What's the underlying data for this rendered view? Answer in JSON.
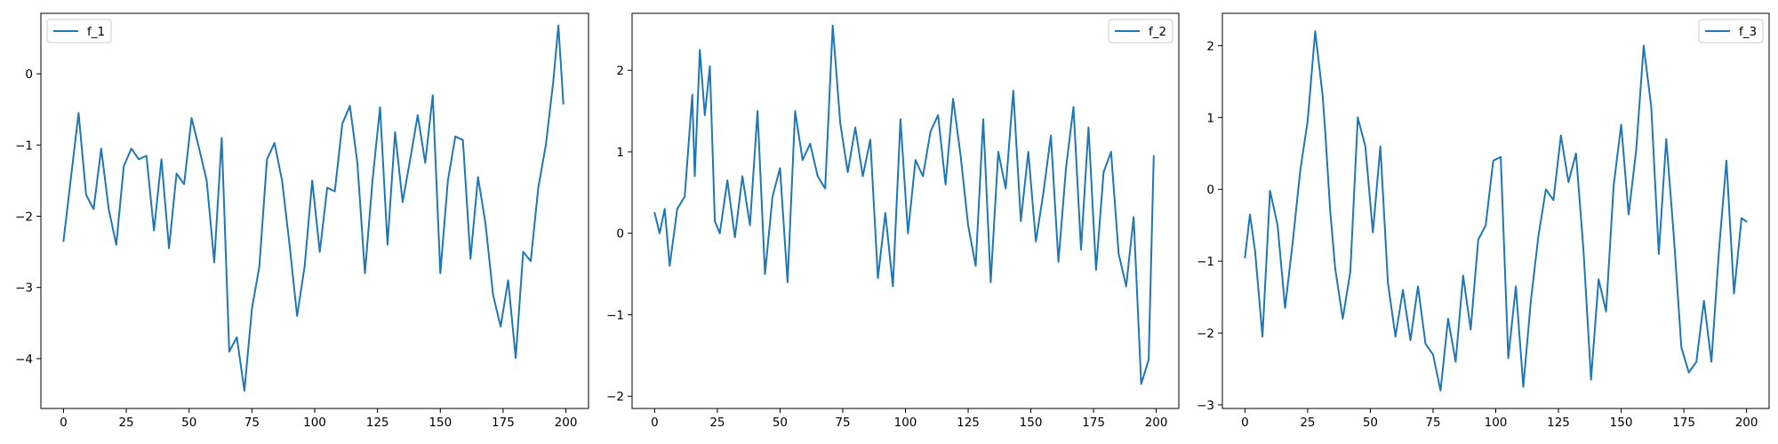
{
  "figure": {
    "line_color": "#1f77b4"
  },
  "chart_data": [
    {
      "type": "line",
      "title": "",
      "xlabel": "",
      "ylabel": "",
      "grid": false,
      "legend": "top-left",
      "xlim": [
        -9,
        209
      ],
      "ylim": [
        -4.7,
        0.85
      ],
      "xticks": [
        0,
        25,
        50,
        75,
        100,
        125,
        150,
        175,
        200
      ],
      "xtick_labels": [
        "0",
        "25",
        "50",
        "75",
        "100",
        "125",
        "150",
        "175",
        "200"
      ],
      "yticks": [
        0,
        -1,
        -2,
        -3,
        -4
      ],
      "ytick_labels": [
        "0",
        "−1",
        "−2",
        "−3",
        "−4"
      ],
      "series": [
        {
          "name": "f_1",
          "color": "#1f77b4",
          "x": [
            0,
            3,
            6,
            9,
            12,
            15,
            18,
            21,
            24,
            27,
            30,
            33,
            36,
            39,
            42,
            45,
            48,
            51,
            54,
            57,
            60,
            63,
            66,
            69,
            72,
            75,
            78,
            81,
            84,
            87,
            90,
            93,
            96,
            99,
            102,
            105,
            108,
            111,
            114,
            117,
            120,
            123,
            126,
            129,
            132,
            135,
            138,
            141,
            144,
            147,
            150,
            153,
            156,
            159,
            162,
            165,
            168,
            171,
            174,
            177,
            180,
            183,
            186,
            189,
            192,
            195,
            197,
            199
          ],
          "y": [
            -2.35,
            -1.45,
            -0.55,
            -1.7,
            -1.9,
            -1.05,
            -1.9,
            -2.4,
            -1.3,
            -1.05,
            -1.2,
            -1.15,
            -2.2,
            -1.2,
            -2.45,
            -1.4,
            -1.55,
            -0.62,
            -1.05,
            -1.5,
            -2.65,
            -0.9,
            -3.9,
            -3.7,
            -4.45,
            -3.3,
            -2.7,
            -1.2,
            -0.97,
            -1.5,
            -2.4,
            -3.4,
            -2.7,
            -1.5,
            -2.5,
            -1.6,
            -1.65,
            -0.7,
            -0.45,
            -1.25,
            -2.8,
            -1.5,
            -0.47,
            -2.4,
            -0.82,
            -1.8,
            -1.2,
            -0.58,
            -1.25,
            -0.3,
            -2.8,
            -1.5,
            -0.88,
            -0.93,
            -2.6,
            -1.45,
            -2.1,
            -3.1,
            -3.55,
            -2.9,
            -3.99,
            -2.5,
            -2.63,
            -1.6,
            -1.0,
            -0.1,
            0.68,
            -0.42
          ]
        }
      ]
    },
    {
      "type": "line",
      "title": "",
      "xlabel": "",
      "ylabel": "",
      "grid": false,
      "legend": "top-right",
      "xlim": [
        -9,
        209
      ],
      "ylim": [
        -2.15,
        2.7
      ],
      "xticks": [
        0,
        25,
        50,
        75,
        100,
        125,
        150,
        175,
        200
      ],
      "xtick_labels": [
        "0",
        "25",
        "50",
        "75",
        "100",
        "125",
        "150",
        "175",
        "200"
      ],
      "yticks": [
        2,
        1,
        0,
        -1,
        -2
      ],
      "ytick_labels": [
        "2",
        "1",
        "0",
        "−1",
        "−2"
      ],
      "series": [
        {
          "name": "f_2",
          "color": "#1f77b4",
          "x": [
            0,
            2,
            4,
            6,
            9,
            12,
            15,
            16,
            18,
            20,
            22,
            24,
            26,
            29,
            32,
            35,
            38,
            41,
            44,
            47,
            50,
            53,
            56,
            59,
            62,
            65,
            68,
            71,
            74,
            77,
            80,
            83,
            86,
            89,
            92,
            95,
            98,
            101,
            104,
            107,
            110,
            113,
            116,
            119,
            122,
            125,
            128,
            131,
            134,
            137,
            140,
            143,
            146,
            149,
            152,
            155,
            158,
            161,
            164,
            167,
            170,
            173,
            176,
            179,
            182,
            185,
            188,
            191,
            194,
            197,
            199
          ],
          "y": [
            0.25,
            0.0,
            0.3,
            -0.4,
            0.3,
            0.45,
            1.7,
            0.7,
            2.25,
            1.45,
            2.05,
            0.15,
            0.0,
            0.65,
            -0.05,
            0.7,
            0.1,
            1.5,
            -0.5,
            0.45,
            0.8,
            -0.6,
            1.5,
            0.9,
            1.1,
            0.7,
            0.55,
            2.55,
            1.35,
            0.75,
            1.3,
            0.7,
            1.15,
            -0.55,
            0.25,
            -0.65,
            1.4,
            0.0,
            0.9,
            0.7,
            1.25,
            1.45,
            0.6,
            1.65,
            0.95,
            0.1,
            -0.4,
            1.4,
            -0.6,
            1.0,
            0.55,
            1.75,
            0.15,
            1.0,
            -0.1,
            0.5,
            1.2,
            -0.35,
            0.8,
            1.55,
            -0.2,
            1.3,
            -0.45,
            0.75,
            1.0,
            -0.25,
            -0.65,
            0.2,
            -1.85,
            -1.55,
            0.95
          ]
        }
      ]
    },
    {
      "type": "line",
      "title": "",
      "xlabel": "",
      "ylabel": "",
      "grid": false,
      "legend": "top-right",
      "xlim": [
        -9,
        209
      ],
      "ylim": [
        -3.05,
        2.45
      ],
      "xticks": [
        0,
        25,
        50,
        75,
        100,
        125,
        150,
        175,
        200
      ],
      "xtick_labels": [
        "0",
        "25",
        "50",
        "75",
        "100",
        "125",
        "150",
        "175",
        "200"
      ],
      "yticks": [
        2,
        1,
        0,
        -1,
        -2,
        -3
      ],
      "ytick_labels": [
        "2",
        "1",
        "0",
        "−1",
        "−2",
        "−3"
      ],
      "series": [
        {
          "name": "f_3",
          "color": "#1f77b4",
          "x": [
            0,
            2,
            4,
            7,
            10,
            13,
            16,
            19,
            22,
            25,
            28,
            31,
            32,
            34,
            36,
            39,
            42,
            45,
            48,
            51,
            54,
            57,
            60,
            63,
            66,
            69,
            72,
            75,
            78,
            81,
            84,
            87,
            90,
            93,
            96,
            99,
            102,
            105,
            108,
            111,
            114,
            117,
            120,
            123,
            126,
            129,
            132,
            135,
            138,
            141,
            144,
            147,
            150,
            153,
            156,
            159,
            162,
            165,
            168,
            171,
            174,
            177,
            180,
            183,
            186,
            189,
            192,
            195,
            198,
            200
          ],
          "y": [
            -0.95,
            -0.35,
            -0.85,
            -2.05,
            -0.02,
            -0.5,
            -1.65,
            -0.75,
            0.25,
            0.95,
            2.2,
            1.3,
            0.8,
            -0.3,
            -1.1,
            -1.8,
            -1.15,
            1.0,
            0.6,
            -0.6,
            0.6,
            -1.3,
            -2.05,
            -1.4,
            -2.1,
            -1.35,
            -2.15,
            -2.3,
            -2.8,
            -1.8,
            -2.4,
            -1.2,
            -1.95,
            -0.7,
            -0.5,
            0.4,
            0.45,
            -2.35,
            -1.35,
            -2.75,
            -1.55,
            -0.65,
            0.0,
            -0.15,
            0.75,
            0.1,
            0.5,
            -0.85,
            -2.65,
            -1.25,
            -1.7,
            0.05,
            0.9,
            -0.35,
            0.55,
            2.0,
            1.15,
            -0.9,
            0.7,
            -0.65,
            -2.2,
            -2.55,
            -2.4,
            -1.55,
            -2.4,
            -0.85,
            0.4,
            -1.45,
            -0.4,
            -0.45
          ]
        }
      ]
    }
  ]
}
